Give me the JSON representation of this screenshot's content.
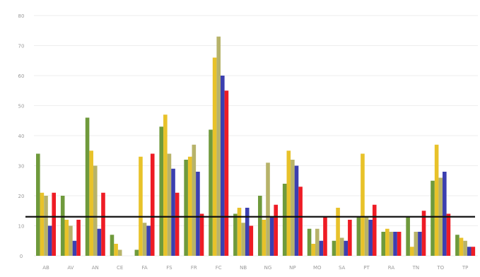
{
  "chart_data": {
    "type": "bar",
    "title": "",
    "xlabel": "",
    "ylabel": "",
    "ylim": [
      0,
      80
    ],
    "yticks": [
      0,
      10,
      20,
      30,
      40,
      50,
      60,
      70,
      80
    ],
    "ytick_labels": [
      "0",
      "10",
      "20",
      "30",
      "40",
      "50",
      "60",
      "70",
      "80"
    ],
    "grid": true,
    "legend": "none",
    "categories": [
      "AB",
      "AV",
      "AN",
      "CE",
      "FA",
      "FS",
      "FR",
      "FC",
      "NB",
      "NG",
      "NP",
      "MO",
      "SA",
      "PT",
      "RA",
      "TN",
      "TO",
      "TP"
    ],
    "series": [
      {
        "color": "#6f9a3c",
        "values": [
          34,
          20,
          46,
          7,
          2,
          43,
          32,
          42,
          14,
          20,
          24,
          9,
          5,
          13,
          8,
          13,
          25,
          7
        ]
      },
      {
        "color": "#e8c22a",
        "values": [
          21,
          12,
          35,
          4,
          33,
          47,
          33,
          66,
          16,
          12,
          35,
          4,
          16,
          34,
          9,
          3,
          37,
          6
        ]
      },
      {
        "color": "#b7b36a",
        "values": [
          20,
          10,
          30,
          2,
          11,
          34,
          37,
          73,
          11,
          31,
          32,
          9,
          6,
          13,
          8,
          8,
          26,
          5
        ]
      },
      {
        "color": "#3b3fb0",
        "values": [
          10,
          5,
          9,
          0,
          10,
          29,
          28,
          60,
          16,
          13,
          30,
          5,
          5,
          12,
          8,
          8,
          28,
          3
        ]
      },
      {
        "color": "#ee1c25",
        "values": [
          21,
          12,
          21,
          0,
          34,
          21,
          14,
          55,
          10,
          17,
          23,
          13,
          12,
          17,
          8,
          15,
          14,
          3
        ]
      }
    ],
    "reference_line": 13
  }
}
